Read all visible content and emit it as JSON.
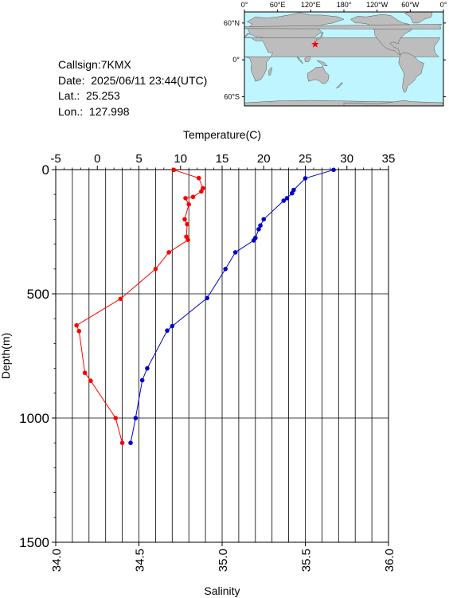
{
  "station": {
    "callsign": "Callsign:7KMX",
    "date": "Date:  2025/06/11 23:44(UTC)",
    "lat_label": "Lat.:  25.253",
    "lon_label": "Lon.:  127.998",
    "lat": 25.253,
    "lon": 127.998
  },
  "map": {
    "top_ticks": [
      "0°",
      "60°E",
      "120°E",
      "180°",
      "120°W",
      "60°W",
      "0°"
    ],
    "lat_ticks": [
      "60°N",
      "0°",
      "60°S"
    ],
    "land_color": "#bdbdbd",
    "ocean_color": "#bff5ff",
    "marker_color": "#ff0000"
  },
  "chart_data": {
    "type": "line",
    "y_axis": {
      "label": "Depth(m)",
      "range": [
        0,
        1500
      ],
      "inverted": true,
      "ticks": [
        "0",
        "500",
        "1000",
        "1500"
      ]
    },
    "x_axis_top": {
      "label": "Temperature(C)",
      "range": [
        -5,
        35
      ],
      "ticks": [
        "-5",
        "0",
        "5",
        "10",
        "15",
        "20",
        "25",
        "30",
        "35"
      ]
    },
    "x_axis_bottom": {
      "label": "Salinity",
      "range": [
        34.0,
        36.0
      ],
      "ticks": [
        "34.0",
        "34.5",
        "35.0",
        "35.5",
        "36.0"
      ]
    },
    "grid": true,
    "series": [
      {
        "axis": "top",
        "color": "#ff0000",
        "points": [
          [
            9.2,
            1
          ],
          [
            12.2,
            34
          ],
          [
            12.7,
            75
          ],
          [
            12.5,
            88
          ],
          [
            11.5,
            110
          ],
          [
            10.6,
            115
          ],
          [
            11.0,
            140
          ],
          [
            10.5,
            200
          ],
          [
            10.8,
            220
          ],
          [
            10.7,
            270
          ],
          [
            10.9,
            283
          ],
          [
            8.6,
            333
          ],
          [
            7.0,
            400
          ],
          [
            2.8,
            520
          ],
          [
            -2.5,
            627
          ],
          [
            -2.2,
            650
          ],
          [
            -1.5,
            818
          ],
          [
            -0.8,
            850
          ],
          [
            2.2,
            1000
          ],
          [
            3.0,
            1100
          ]
        ]
      },
      {
        "axis": "bottom",
        "color": "#0000cc",
        "points": [
          [
            35.67,
            1
          ],
          [
            35.5,
            35
          ],
          [
            35.43,
            82
          ],
          [
            35.42,
            95
          ],
          [
            35.39,
            115
          ],
          [
            35.37,
            125
          ],
          [
            35.25,
            200
          ],
          [
            35.23,
            225
          ],
          [
            35.22,
            240
          ],
          [
            35.2,
            275
          ],
          [
            35.19,
            285
          ],
          [
            35.08,
            333
          ],
          [
            35.02,
            400
          ],
          [
            34.91,
            517
          ],
          [
            34.7,
            630
          ],
          [
            34.67,
            648
          ],
          [
            34.55,
            800
          ],
          [
            34.52,
            848
          ],
          [
            34.48,
            1000
          ],
          [
            34.45,
            1100
          ]
        ]
      }
    ]
  }
}
